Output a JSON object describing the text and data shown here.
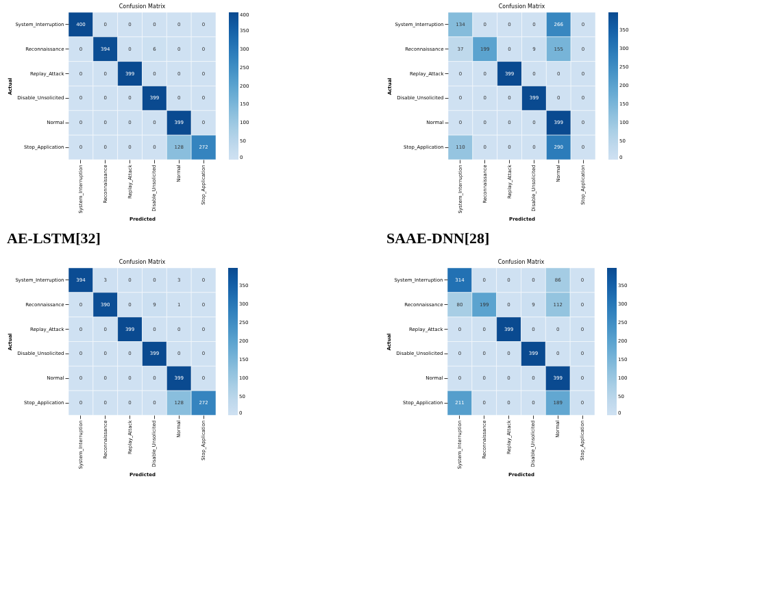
{
  "chart_data": [
    {
      "type": "heatmap",
      "title": "Confusion Matrix",
      "xlabel": "Predicted",
      "ylabel": "Actual",
      "categories": [
        "System_Interruption",
        "Reconnaissance",
        "Replay_Attack",
        "Disable_Unsolicited",
        "Normal",
        "Stop_Application"
      ],
      "y_categories": [
        "System_Interruption",
        "Reconnaissance",
        "Replay_Attack",
        "Disable_Unsolicited",
        "Normal",
        "Stop_Application"
      ],
      "cells": [
        [
          400,
          0,
          0,
          0,
          0,
          0
        ],
        [
          0,
          394,
          0,
          6,
          0,
          0
        ],
        [
          0,
          0,
          399,
          0,
          0,
          0
        ],
        [
          0,
          0,
          0,
          399,
          0,
          0
        ],
        [
          0,
          0,
          0,
          0,
          399,
          0
        ],
        [
          0,
          0,
          0,
          0,
          128,
          272
        ]
      ],
      "clim": [
        0,
        400
      ],
      "cticks": [
        0,
        50,
        100,
        150,
        200,
        250,
        300,
        350,
        400
      ],
      "data_labels": true,
      "annotations": [
        "AE-LSTM[32]"
      ]
    },
    {
      "type": "heatmap",
      "title": "Confusion Matrix",
      "xlabel": "Predicted",
      "ylabel": "Actual",
      "categories": [
        "System_Interruption",
        "Reconnaissance",
        "Replay_Attack",
        "Disable_Unsolicited",
        "Normal",
        "Stop_Application"
      ],
      "y_categories": [
        "System_Interruption",
        "Reconnaissance",
        "Replay_Attack",
        "Disable_Unsolicited",
        "Normal",
        "Stop_Application"
      ],
      "cells": [
        [
          134,
          0,
          0,
          0,
          266,
          0
        ],
        [
          37,
          199,
          0,
          9,
          155,
          0
        ],
        [
          0,
          0,
          399,
          0,
          0,
          0
        ],
        [
          0,
          0,
          0,
          399,
          0,
          0
        ],
        [
          0,
          0,
          0,
          0,
          399,
          0
        ],
        [
          110,
          0,
          0,
          0,
          290,
          0
        ]
      ],
      "clim": [
        0,
        399
      ],
      "cticks": [
        0,
        50,
        100,
        150,
        200,
        250,
        300,
        350
      ],
      "data_labels": true,
      "annotations": [
        "SAAE-DNN[28]"
      ]
    },
    {
      "type": "heatmap",
      "title": "Confusion Matrix",
      "xlabel": "Predicted",
      "ylabel": "Actual",
      "categories": [
        "System_Interruption",
        "Reconnaissance",
        "Replay_Attack",
        "Disable_Unsolicited",
        "Normal",
        "Stop_Application"
      ],
      "y_categories": [
        "System_Interruption",
        "Reconnaissance",
        "Replay_Attack",
        "Disable_Unsolicited",
        "Normal",
        "Stop_Application"
      ],
      "cells": [
        [
          394,
          3,
          0,
          0,
          3,
          0
        ],
        [
          0,
          390,
          0,
          9,
          1,
          0
        ],
        [
          0,
          0,
          399,
          0,
          0,
          0
        ],
        [
          0,
          0,
          0,
          399,
          0,
          0
        ],
        [
          0,
          0,
          0,
          0,
          399,
          0
        ],
        [
          0,
          0,
          0,
          0,
          128,
          272
        ]
      ],
      "clim": [
        0,
        399
      ],
      "cticks": [
        0,
        50,
        100,
        150,
        200,
        250,
        300,
        350
      ],
      "data_labels": true
    },
    {
      "type": "heatmap",
      "title": "Confusion Matrix",
      "xlabel": "Predicted",
      "ylabel": "Actual",
      "categories": [
        "System_Interruption",
        "Reconnaissance",
        "Replay_Attack",
        "Disable_Unsolicited",
        "Normal",
        "Stop_Application"
      ],
      "y_categories": [
        "System_Interruption",
        "Reconnaissance",
        "Replay_Attack",
        "Disable_Unsolicited",
        "Normal",
        "Stop_Application"
      ],
      "cells": [
        [
          314,
          0,
          0,
          0,
          86,
          0
        ],
        [
          80,
          199,
          0,
          9,
          112,
          0
        ],
        [
          0,
          0,
          399,
          0,
          0,
          0
        ],
        [
          0,
          0,
          0,
          399,
          0,
          0
        ],
        [
          0,
          0,
          0,
          0,
          399,
          0
        ],
        [
          211,
          0,
          0,
          0,
          189,
          0
        ]
      ],
      "clim": [
        0,
        399
      ],
      "cticks": [
        0,
        50,
        100,
        150,
        200,
        250,
        300,
        350
      ],
      "data_labels": true
    }
  ]
}
